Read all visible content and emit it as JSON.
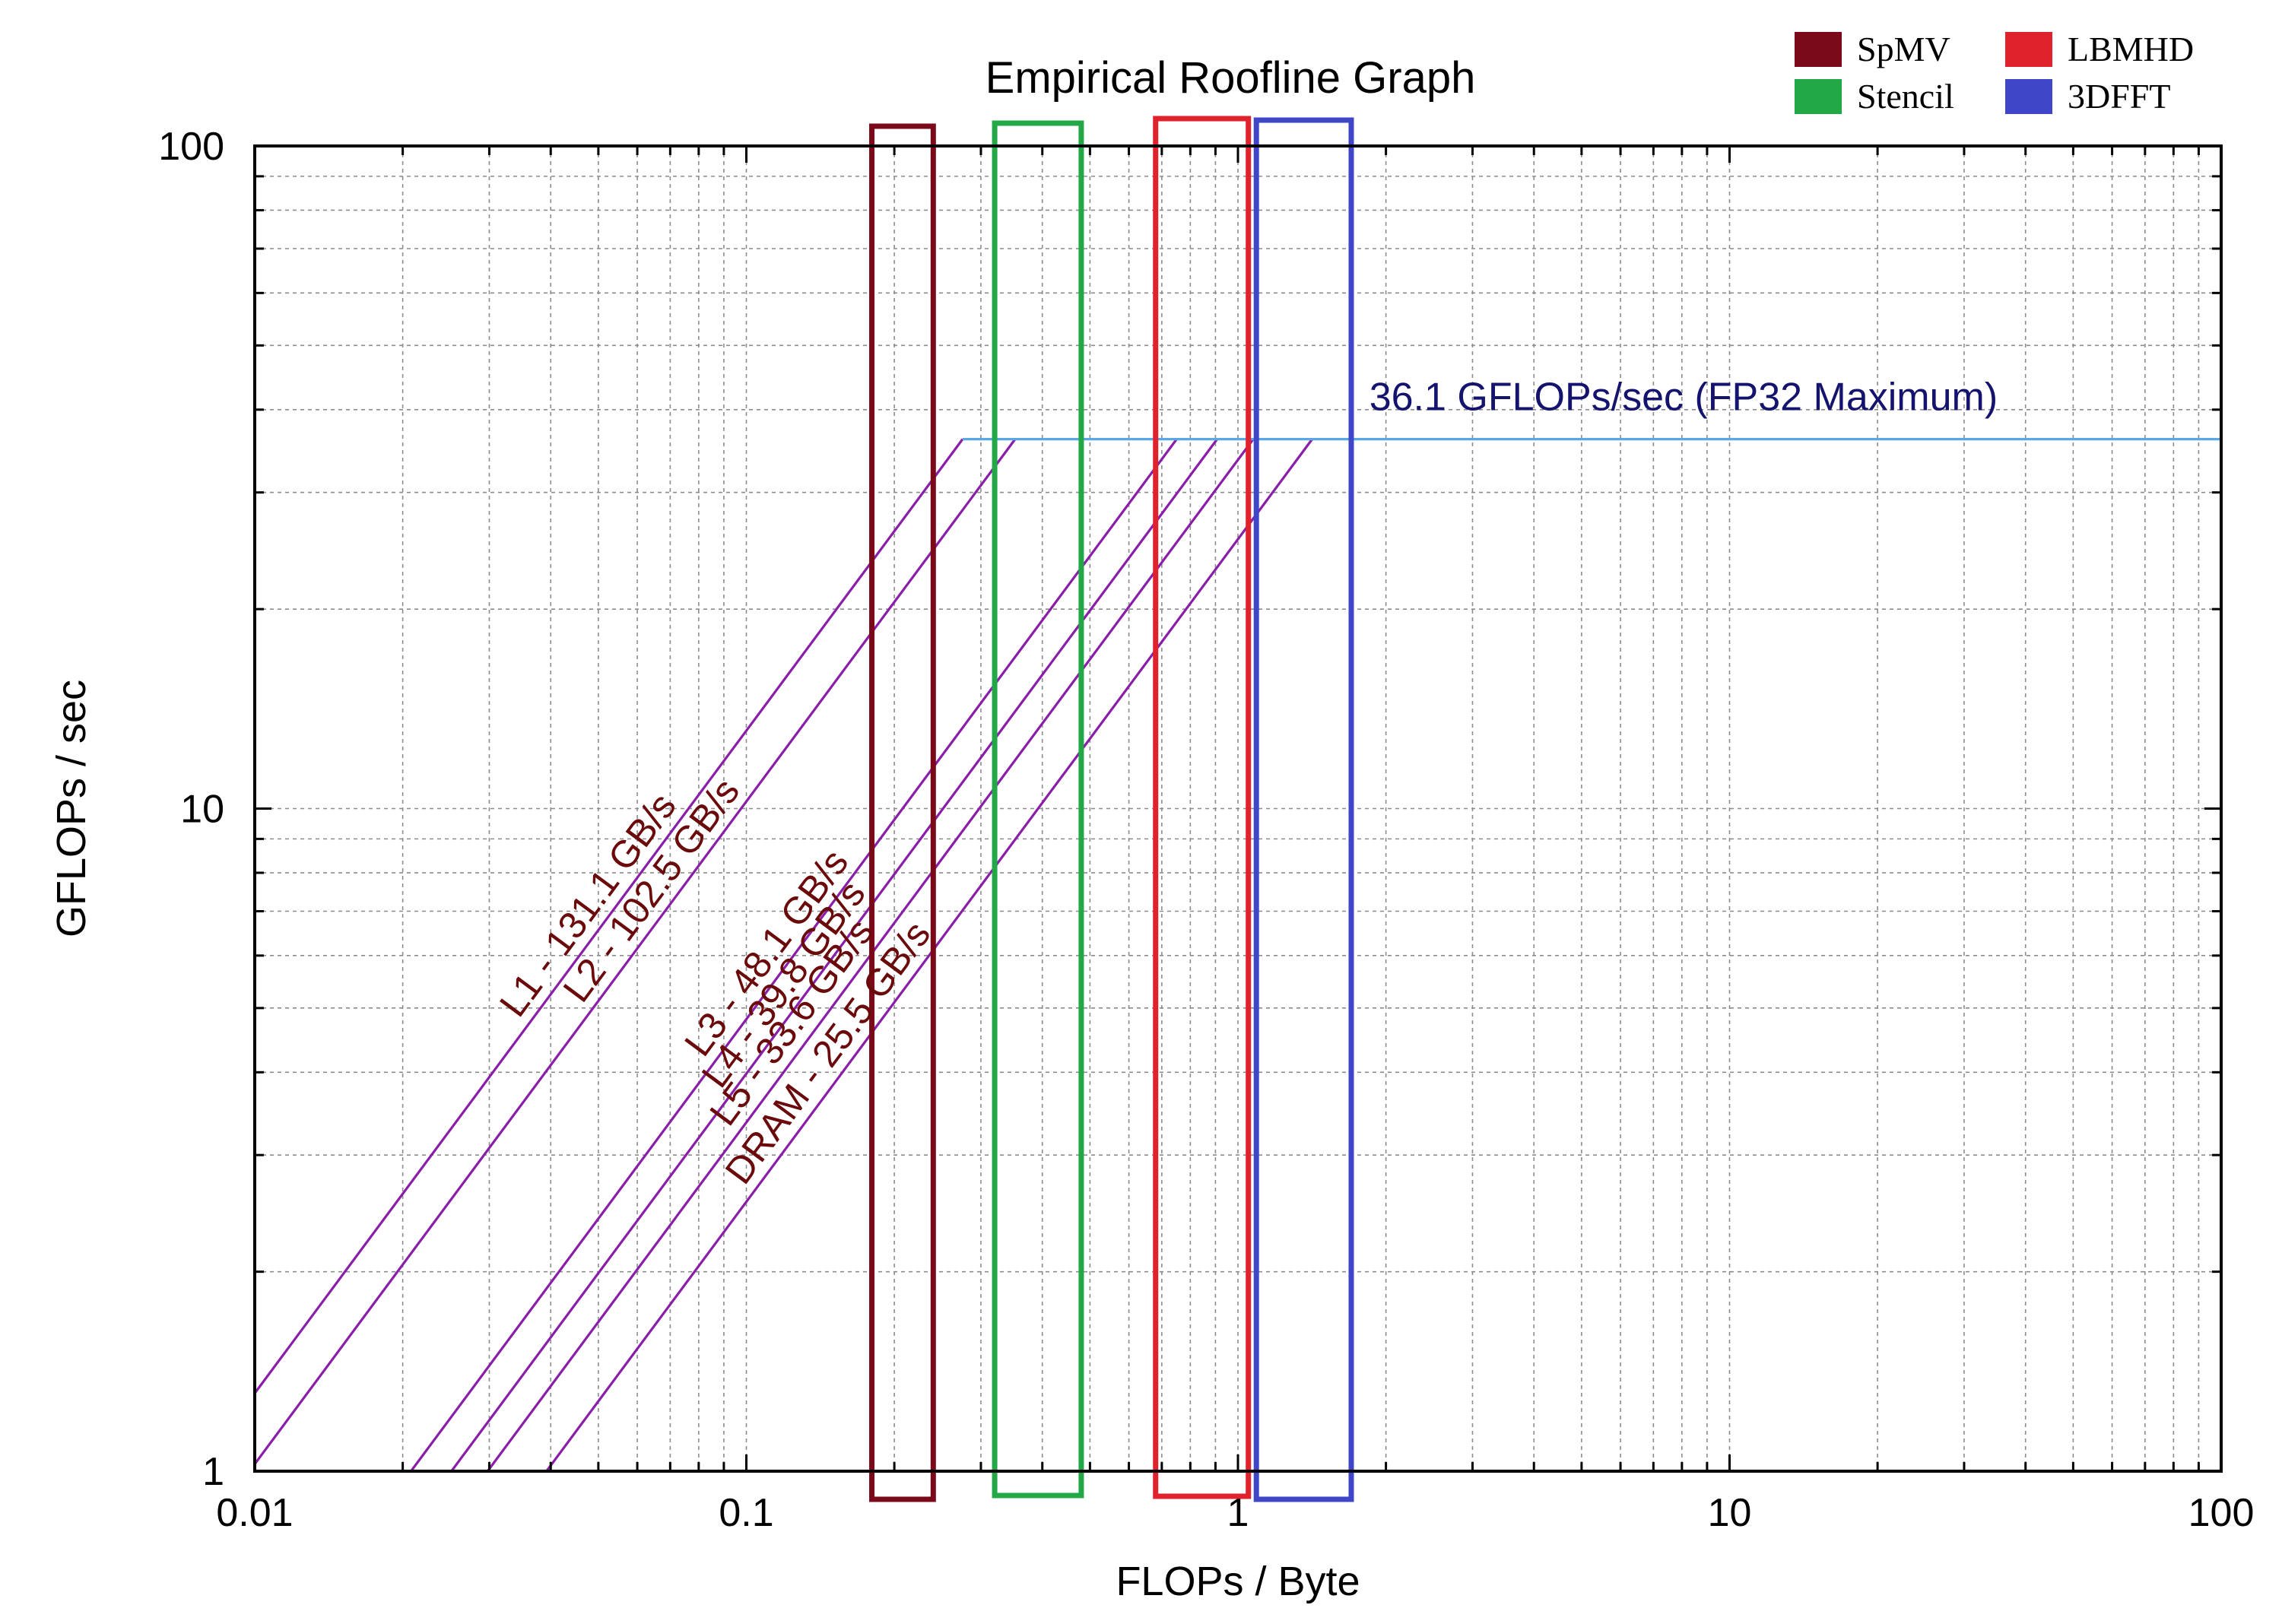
{
  "chart_data": {
    "type": "line",
    "title": "Empirical Roofline Graph",
    "xlabel": "FLOPs / Byte",
    "ylabel": "GFLOPs / sec",
    "x_scale": "log",
    "y_scale": "log",
    "xlim": [
      0.01,
      100
    ],
    "ylim": [
      1,
      100
    ],
    "x_ticks": [
      {
        "value": 0.01,
        "label": "0.01"
      },
      {
        "value": 0.1,
        "label": "0.1"
      },
      {
        "value": 1,
        "label": "1"
      },
      {
        "value": 10,
        "label": "10"
      },
      {
        "value": 100,
        "label": "100"
      }
    ],
    "y_ticks": [
      {
        "value": 1,
        "label": "1"
      },
      {
        "value": 10,
        "label": "10"
      },
      {
        "value": 100,
        "label": "100"
      }
    ],
    "grid": true,
    "peak": {
      "value": 36.1,
      "label": "36.1 GFLOPs/sec (FP32 Maximum)",
      "color": "#5aa7e6",
      "label_color": "#14146e"
    },
    "bandwidth_series": [
      {
        "name": "L1",
        "bandwidth": 131.1,
        "label": "L1 - 131.1 GB/s",
        "label_at_x": 0.052
      },
      {
        "name": "L2",
        "bandwidth": 102.5,
        "label": "L2 - 102.5 GB/s",
        "label_at_x": 0.07
      },
      {
        "name": "L3",
        "bandwidth": 48.1,
        "label": "L3 - 48.1 GB/s",
        "label_at_x": 0.12
      },
      {
        "name": "L4",
        "bandwidth": 39.8,
        "label": "L4 - 39.8 GB/s",
        "label_at_x": 0.13
      },
      {
        "name": "L5",
        "bandwidth": 33.6,
        "label": "L5 - 33.6 GB/s",
        "label_at_x": 0.135
      },
      {
        "name": "DRAM",
        "bandwidth": 25.5,
        "label": "DRAM - 25.5 GB/s",
        "label_at_x": 0.16
      }
    ],
    "bandwidth_line_color": "#8a1ea8",
    "bandwidth_label_color": "#6b0a0a",
    "regions": [
      {
        "name": "SpMV",
        "x_range": [
          0.18,
          0.24
        ],
        "color": "#7a0a1a"
      },
      {
        "name": "Stencil",
        "x_range": [
          0.32,
          0.48
        ],
        "color": "#22a846"
      },
      {
        "name": "LBMHD",
        "x_range": [
          0.68,
          1.05
        ],
        "color": "#e0222c"
      },
      {
        "name": "3DFFT",
        "x_range": [
          1.09,
          1.7
        ],
        "color": "#3f46c8"
      }
    ],
    "legend": {
      "placement": "top-right"
    }
  }
}
